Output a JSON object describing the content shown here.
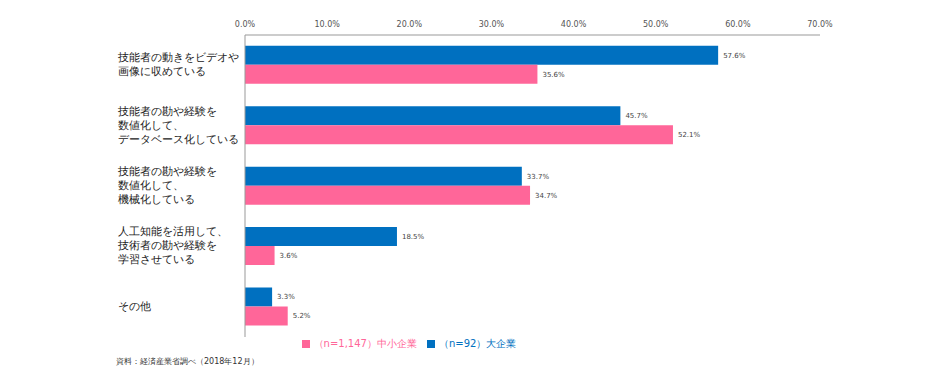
{
  "chart_data": {
    "type": "bar",
    "orientation": "horizontal",
    "categories": [
      "技能者の動きをビデオや\n画像に収めている",
      "技能者の勘や経験を\n数値化して、\nデータベース化している",
      "技能者の勘や経験を\n数値化して、\n機械化している",
      "人工知能を活用して、\n技術者の勘や経験を\n学習させている",
      "その他"
    ],
    "series": [
      {
        "name": "（n=92）大企業",
        "color": "#0070c0",
        "values": [
          57.6,
          45.7,
          33.7,
          18.5,
          3.3
        ],
        "value_labels": [
          "57.6%",
          "45.7%",
          "33.7%",
          "18.5%",
          "3.3%"
        ]
      },
      {
        "name": "（n=1,147）中小企業",
        "color": "#ff6699",
        "values": [
          35.6,
          52.1,
          34.7,
          3.6,
          5.2
        ],
        "value_labels": [
          "35.6%",
          "52.1%",
          "34.7%",
          "3.6%",
          "5.2%"
        ]
      }
    ],
    "xlim": [
      0,
      70
    ],
    "xticks": [
      {
        "value": 0,
        "label": "0.0%"
      },
      {
        "value": 10,
        "label": "10.0%"
      },
      {
        "value": 20,
        "label": "20.0%"
      },
      {
        "value": 30,
        "label": "30.0%"
      },
      {
        "value": 40,
        "label": "40.0%"
      },
      {
        "value": 50,
        "label": "50.0%"
      },
      {
        "value": 60,
        "label": "60.0%"
      },
      {
        "value": 70,
        "label": "70.0%"
      }
    ],
    "grid": false,
    "data_labels": true,
    "legend": "bottom",
    "annotations": [
      "資料：経済産業省調べ（2018年12月）"
    ]
  }
}
